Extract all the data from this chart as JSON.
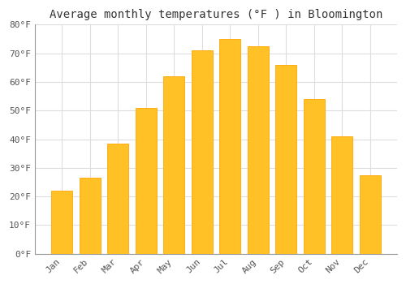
{
  "title": "Average monthly temperatures (°F ) in Bloomington",
  "months": [
    "Jan",
    "Feb",
    "Mar",
    "Apr",
    "May",
    "Jun",
    "Jul",
    "Aug",
    "Sep",
    "Oct",
    "Nov",
    "Dec"
  ],
  "values": [
    22,
    26.5,
    38.5,
    51,
    62,
    71,
    75,
    72.5,
    66,
    54,
    41,
    27.5
  ],
  "bar_color_main": "#FFC125",
  "bar_color_edge": "#FFA500",
  "ylim": [
    0,
    80
  ],
  "yticks": [
    0,
    10,
    20,
    30,
    40,
    50,
    60,
    70,
    80
  ],
  "ytick_labels": [
    "0°F",
    "10°F",
    "20°F",
    "30°F",
    "40°F",
    "50°F",
    "60°F",
    "70°F",
    "80°F"
  ],
  "background_color": "#FFFFFF",
  "grid_color": "#DDDDDD",
  "title_fontsize": 10,
  "tick_fontsize": 8,
  "font_family": "monospace",
  "bar_width": 0.75
}
